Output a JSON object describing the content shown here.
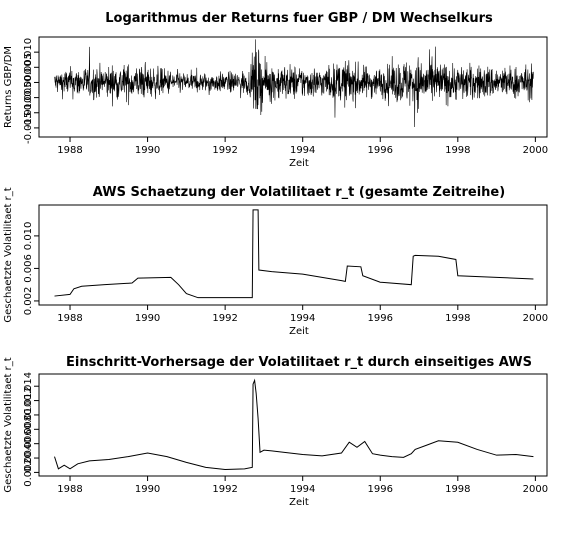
{
  "chart_data": [
    {
      "type": "line",
      "title": "Logarithmus der Returns fuer GBP / DM  Wechselkurs",
      "xlabel": "Zeit",
      "ylabel": "Returns GBP/DM",
      "xlim": [
        1987.2,
        2000.3
      ],
      "ylim": [
        -0.018,
        0.015
      ],
      "xticks": [
        "1988",
        "1990",
        "1992",
        "1994",
        "1996",
        "1998",
        "2000"
      ],
      "yticks": [
        "-0.015",
        "-0.010",
        "-0.005",
        "0.000",
        "0.005",
        "0.010"
      ],
      "grid": false,
      "series": [
        {
          "style": "dense-noise",
          "x_range": [
            1987.6,
            1999.95
          ],
          "volatility_envelope": {
            "x": [
              1987.6,
              1988.0,
              1989.5,
              1990.0,
              1991.0,
              1992.0,
              1992.7,
              1992.75,
              1993.0,
              1994.5,
              1995.2,
              1995.5,
              1996.0,
              1996.9,
              1997.2,
              1998.0,
              1999.0,
              1999.95
            ],
            "y": [
              0.0035,
              0.0045,
              0.0055,
              0.005,
              0.003,
              0.003,
              0.004,
              0.013,
              0.006,
              0.0045,
              0.007,
              0.005,
              0.0045,
              0.008,
              0.007,
              0.0055,
              0.005,
              0.005
            ]
          }
        }
      ]
    },
    {
      "type": "line",
      "title": "AWS Schaetzung der Volatilitaet  r_t (gesamte Zeitreihe)",
      "xlabel": "Zeit",
      "ylabel": "Geschaetzte Volatilitaet r_t",
      "xlim": [
        1987.2,
        2000.3
      ],
      "ylim": [
        0.0015,
        0.0138
      ],
      "xticks": [
        "1988",
        "1990",
        "1992",
        "1994",
        "1996",
        "1998",
        "2000"
      ],
      "yticks": [
        "0.002",
        "0.006",
        "0.010"
      ],
      "grid": false,
      "series": [
        {
          "x": [
            1987.6,
            1988.0,
            1988.1,
            1988.3,
            1988.9,
            1989.6,
            1989.75,
            1990.6,
            1990.8,
            1991.0,
            1991.3,
            1992.0,
            1992.7,
            1992.72,
            1992.85,
            1992.87,
            1993.2,
            1994.0,
            1995.0,
            1995.1,
            1995.15,
            1995.5,
            1995.55,
            1996.0,
            1996.8,
            1996.85,
            1996.9,
            1997.5,
            1997.95,
            1998.0,
            1999.0,
            1999.95
          ],
          "y": [
            0.0026,
            0.0028,
            0.0035,
            0.0038,
            0.004,
            0.0042,
            0.0048,
            0.0049,
            0.004,
            0.0029,
            0.0024,
            0.0024,
            0.0024,
            0.0132,
            0.0132,
            0.0058,
            0.0056,
            0.0053,
            0.0045,
            0.0044,
            0.0063,
            0.0062,
            0.0051,
            0.0043,
            0.004,
            0.0075,
            0.0076,
            0.0075,
            0.0071,
            0.0051,
            0.0049,
            0.0047
          ]
        }
      ]
    },
    {
      "type": "line",
      "title": "Einschritt-Vorhersage der Volatilitaet  r_t  durch einseitiges AWS",
      "xlabel": "Zeit",
      "ylabel": "Geschaetzte Volatilitaet r_t",
      "xlim": [
        1987.2,
        2000.3
      ],
      "ylim": [
        0.0015,
        0.0157
      ],
      "xticks": [
        "1988",
        "1990",
        "1992",
        "1994",
        "1996",
        "1998",
        "2000"
      ],
      "yticks": [
        "0.002",
        "0.004",
        "0.006",
        "0.008",
        "0.010",
        "0.012",
        "0.014"
      ],
      "grid": false,
      "series": [
        {
          "x": [
            1987.6,
            1987.7,
            1987.85,
            1988.0,
            1988.2,
            1988.5,
            1989.0,
            1989.5,
            1990.0,
            1990.5,
            1991.0,
            1991.5,
            1992.0,
            1992.5,
            1992.7,
            1992.72,
            1992.76,
            1992.8,
            1992.85,
            1992.9,
            1993.0,
            1993.2,
            1993.5,
            1994.0,
            1994.5,
            1995.0,
            1995.2,
            1995.4,
            1995.6,
            1995.8,
            1996.0,
            1996.3,
            1996.6,
            1996.8,
            1996.9,
            1997.2,
            1997.5,
            1998.0,
            1998.5,
            1999.0,
            1999.5,
            1999.95
          ],
          "y": [
            0.0042,
            0.0025,
            0.003,
            0.0025,
            0.0032,
            0.0036,
            0.0038,
            0.0042,
            0.0047,
            0.0042,
            0.0034,
            0.0027,
            0.0024,
            0.0025,
            0.0027,
            0.0143,
            0.0148,
            0.013,
            0.0095,
            0.0048,
            0.0051,
            0.005,
            0.0048,
            0.0045,
            0.0043,
            0.0047,
            0.0062,
            0.0055,
            0.0063,
            0.0046,
            0.0044,
            0.0042,
            0.0041,
            0.0046,
            0.0052,
            0.0058,
            0.0064,
            0.0062,
            0.0052,
            0.0044,
            0.0045,
            0.0042
          ]
        }
      ]
    }
  ]
}
